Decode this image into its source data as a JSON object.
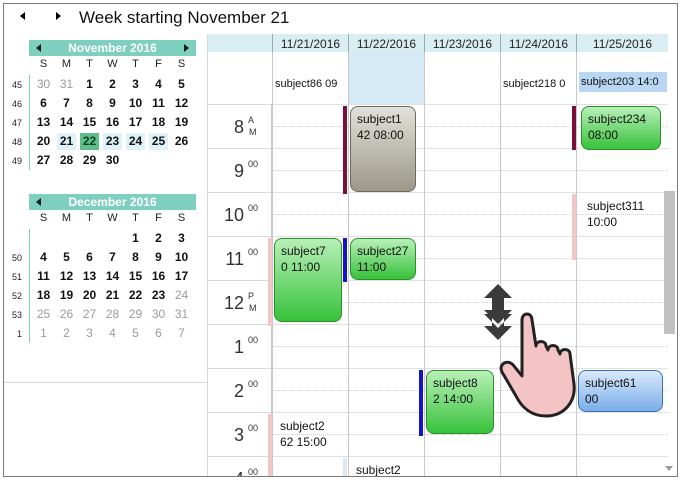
{
  "header": {
    "title": "Week starting November 21"
  },
  "navigator": {
    "months": [
      {
        "title": "November 2016",
        "dows": [
          "S",
          "M",
          "T",
          "W",
          "T",
          "F",
          "S"
        ],
        "weeks": [
          {
            "num": "45",
            "days": [
              {
                "d": "30",
                "out": true
              },
              {
                "d": "31",
                "out": true
              },
              {
                "d": "1"
              },
              {
                "d": "2"
              },
              {
                "d": "3"
              },
              {
                "d": "4"
              },
              {
                "d": "5"
              }
            ]
          },
          {
            "num": "46",
            "days": [
              {
                "d": "6"
              },
              {
                "d": "7"
              },
              {
                "d": "8"
              },
              {
                "d": "9"
              },
              {
                "d": "10"
              },
              {
                "d": "11"
              },
              {
                "d": "12"
              }
            ]
          },
          {
            "num": "47",
            "days": [
              {
                "d": "13"
              },
              {
                "d": "14"
              },
              {
                "d": "15"
              },
              {
                "d": "16"
              },
              {
                "d": "17"
              },
              {
                "d": "18"
              },
              {
                "d": "19"
              }
            ]
          },
          {
            "num": "48",
            "days": [
              {
                "d": "20"
              },
              {
                "d": "21",
                "wk": true
              },
              {
                "d": "22",
                "today": true
              },
              {
                "d": "23",
                "wk": true
              },
              {
                "d": "24",
                "wk": true
              },
              {
                "d": "25",
                "wk": true
              },
              {
                "d": "26"
              }
            ]
          },
          {
            "num": "49",
            "days": [
              {
                "d": "27"
              },
              {
                "d": "28"
              },
              {
                "d": "29"
              },
              {
                "d": "30"
              },
              {
                "d": "",
                "empty": true
              },
              {
                "d": "",
                "empty": true
              },
              {
                "d": "",
                "empty": true
              }
            ]
          }
        ]
      },
      {
        "title": "December 2016",
        "dows": [
          "S",
          "M",
          "T",
          "W",
          "T",
          "F",
          "S"
        ],
        "weeks": [
          {
            "num": "",
            "days": [
              {
                "d": "",
                "empty": true
              },
              {
                "d": "",
                "empty": true
              },
              {
                "d": "",
                "empty": true
              },
              {
                "d": "",
                "empty": true
              },
              {
                "d": "1"
              },
              {
                "d": "2"
              },
              {
                "d": "3"
              }
            ]
          },
          {
            "num": "50",
            "days": [
              {
                "d": "4"
              },
              {
                "d": "5"
              },
              {
                "d": "6"
              },
              {
                "d": "7"
              },
              {
                "d": "8"
              },
              {
                "d": "9"
              },
              {
                "d": "10"
              }
            ]
          },
          {
            "num": "51",
            "days": [
              {
                "d": "11"
              },
              {
                "d": "12"
              },
              {
                "d": "13"
              },
              {
                "d": "14"
              },
              {
                "d": "15"
              },
              {
                "d": "16"
              },
              {
                "d": "17"
              }
            ]
          },
          {
            "num": "52",
            "days": [
              {
                "d": "18"
              },
              {
                "d": "19"
              },
              {
                "d": "20"
              },
              {
                "d": "21"
              },
              {
                "d": "22"
              },
              {
                "d": "23"
              },
              {
                "d": "24",
                "out": true
              }
            ]
          },
          {
            "num": "53",
            "days": [
              {
                "d": "25",
                "out": true
              },
              {
                "d": "26",
                "out": true
              },
              {
                "d": "27",
                "out": true
              },
              {
                "d": "28",
                "out": true
              },
              {
                "d": "29",
                "out": true
              },
              {
                "d": "30",
                "out": true
              },
              {
                "d": "31",
                "out": true
              }
            ]
          },
          {
            "num": "1",
            "days": [
              {
                "d": "1",
                "out": true
              },
              {
                "d": "2",
                "out": true
              },
              {
                "d": "3",
                "out": true
              },
              {
                "d": "4",
                "out": true
              },
              {
                "d": "5",
                "out": true
              },
              {
                "d": "6",
                "out": true
              },
              {
                "d": "7",
                "out": true
              }
            ]
          }
        ]
      }
    ]
  },
  "columns": [
    "11/21/2016",
    "11/22/2016",
    "11/23/2016",
    "11/24/2016",
    "11/25/2016"
  ],
  "allday": [
    {
      "col": 0,
      "text": "subject86 09"
    },
    {
      "col": 3,
      "text": "subject218 0"
    },
    {
      "col": 4,
      "text": "subject203 14:0"
    }
  ],
  "hours": [
    {
      "num": "8",
      "sup": "A",
      "sup2": "M"
    },
    {
      "num": "9",
      "sup": "00"
    },
    {
      "num": "10",
      "sup": "00"
    },
    {
      "num": "11",
      "sup": "00"
    },
    {
      "num": "12",
      "sup": "P",
      "sup2": "M"
    },
    {
      "num": "1",
      "sup": "00"
    },
    {
      "num": "2",
      "sup": "00"
    },
    {
      "num": "3",
      "sup": "00"
    },
    {
      "num": "4",
      "sup": "00"
    }
  ],
  "appointments": [
    {
      "id": "subject1",
      "line1": "subject1",
      "line2": "42 08:00"
    },
    {
      "id": "subject234",
      "line1": "subject234",
      "line2": "08:00"
    },
    {
      "id": "subject311",
      "line1": "subject311",
      "line2": "10:00"
    },
    {
      "id": "subject7",
      "line1": "subject7",
      "line2": "0 11:00"
    },
    {
      "id": "subject27",
      "line1": "subject27",
      "line2": "11:00"
    },
    {
      "id": "subject8",
      "line1": "subject8",
      "line2": "2 14:00"
    },
    {
      "id": "subject61",
      "line1": "subject61",
      "line2": "00"
    },
    {
      "id": "subject2a",
      "line1": "subject2",
      "line2": "62 15:00"
    },
    {
      "id": "subject2b",
      "line1": "subject2",
      "line2": ""
    }
  ],
  "colors": {
    "accent": "#7ecfbf",
    "header_bg": "#d9eef3",
    "today": "#5dc08a"
  },
  "icons": {
    "drag_overlay": "touch-drag-hand-icon"
  }
}
